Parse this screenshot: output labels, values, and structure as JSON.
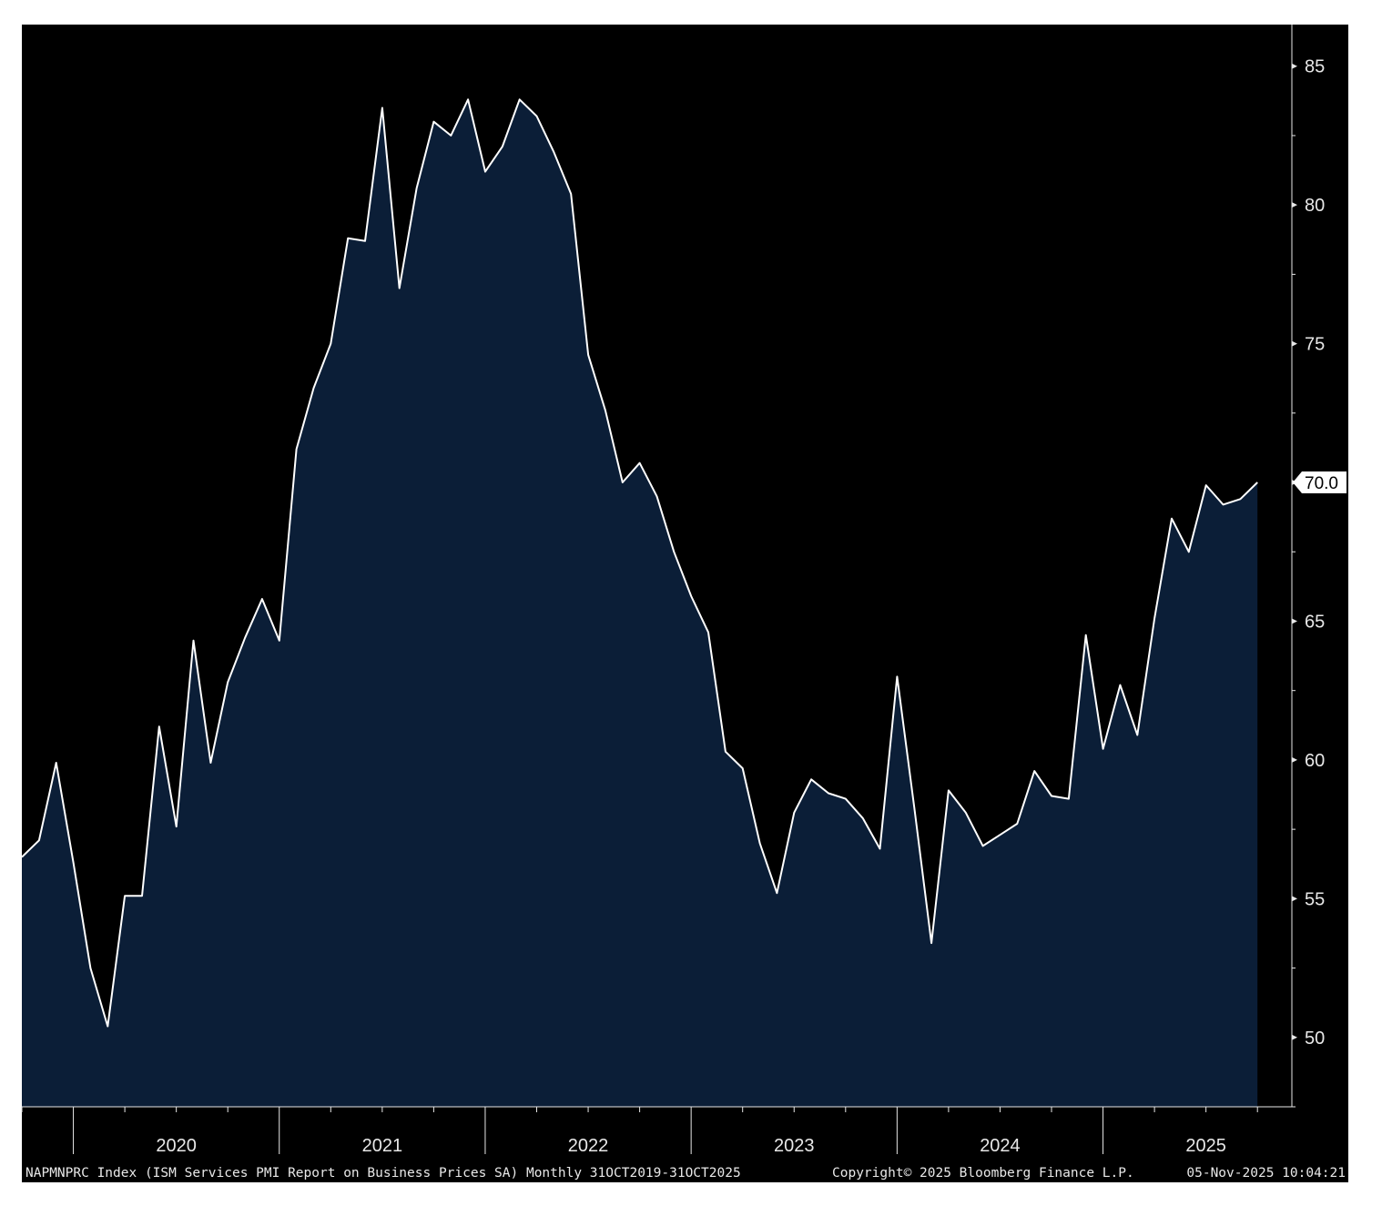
{
  "colors": {
    "background": "#000000",
    "area_fill": "#0b1e37",
    "line": "#ffffff",
    "text": "#e8e8e8",
    "last_value_box": "#ffffff"
  },
  "chart_data": {
    "type": "area",
    "series": [
      {
        "x": [
          "2019-10",
          "2019-11",
          "2019-12",
          "2020-01",
          "2020-02",
          "2020-03",
          "2020-04",
          "2020-05",
          "2020-06",
          "2020-07",
          "2020-08",
          "2020-09",
          "2020-10",
          "2020-11",
          "2020-12",
          "2021-01",
          "2021-02",
          "2021-03",
          "2021-04",
          "2021-05",
          "2021-06",
          "2021-07",
          "2021-08",
          "2021-09",
          "2021-10",
          "2021-11",
          "2021-12",
          "2022-01",
          "2022-02",
          "2022-03",
          "2022-04",
          "2022-05",
          "2022-06",
          "2022-07",
          "2022-08",
          "2022-09",
          "2022-10",
          "2022-11",
          "2022-12",
          "2023-01",
          "2023-02",
          "2023-03",
          "2023-04",
          "2023-05",
          "2023-06",
          "2023-07",
          "2023-08",
          "2023-09",
          "2023-10",
          "2023-11",
          "2023-12",
          "2024-01",
          "2024-02",
          "2024-03",
          "2024-04",
          "2024-05",
          "2024-06",
          "2024-07",
          "2024-08",
          "2024-09",
          "2024-10",
          "2024-11",
          "2024-12",
          "2025-01",
          "2025-02",
          "2025-03",
          "2025-04",
          "2025-05",
          "2025-06",
          "2025-07",
          "2025-08",
          "2025-09",
          "2025-10"
        ],
        "values": [
          56.5,
          57.1,
          59.9,
          56.3,
          52.5,
          50.4,
          55.1,
          55.1,
          61.2,
          57.6,
          64.3,
          59.9,
          62.8,
          64.4,
          65.8,
          64.3,
          71.2,
          73.4,
          75.0,
          78.8,
          78.7,
          83.5,
          77.0,
          80.6,
          83.0,
          82.5,
          83.8,
          81.2,
          82.1,
          83.8,
          83.2,
          81.9,
          80.4,
          74.6,
          72.6,
          70.0,
          70.7,
          69.5,
          67.5,
          65.9,
          64.6,
          60.3,
          59.7,
          57.0,
          55.2,
          58.1,
          59.3,
          58.8,
          58.6,
          57.9,
          56.8,
          63.0,
          58.3,
          53.4,
          58.9,
          58.1,
          56.9,
          57.3,
          57.7,
          59.6,
          58.7,
          58.6,
          64.5,
          60.4,
          62.7,
          60.9,
          65.1,
          68.7,
          67.5,
          69.9,
          69.2,
          69.4,
          70.0
        ]
      }
    ],
    "last_value_label": "70.0",
    "ylim": [
      47.5,
      86.5
    ],
    "yticks": [
      "50",
      "55",
      "60",
      "65",
      "70",
      "75",
      "80",
      "85"
    ],
    "x_year_labels": [
      "2020",
      "2021",
      "2022",
      "2023",
      "2024",
      "2025"
    ],
    "y_axis_side": "right",
    "grid": false
  },
  "footer": {
    "description": "NAPMNPRC Index (ISM Services PMI Report on Business Prices SA) Monthly 31OCT2019-31OCT2025",
    "copyright": "Copyright© 2025 Bloomberg Finance L.P.",
    "timestamp": "05-Nov-2025 10:04:21"
  }
}
